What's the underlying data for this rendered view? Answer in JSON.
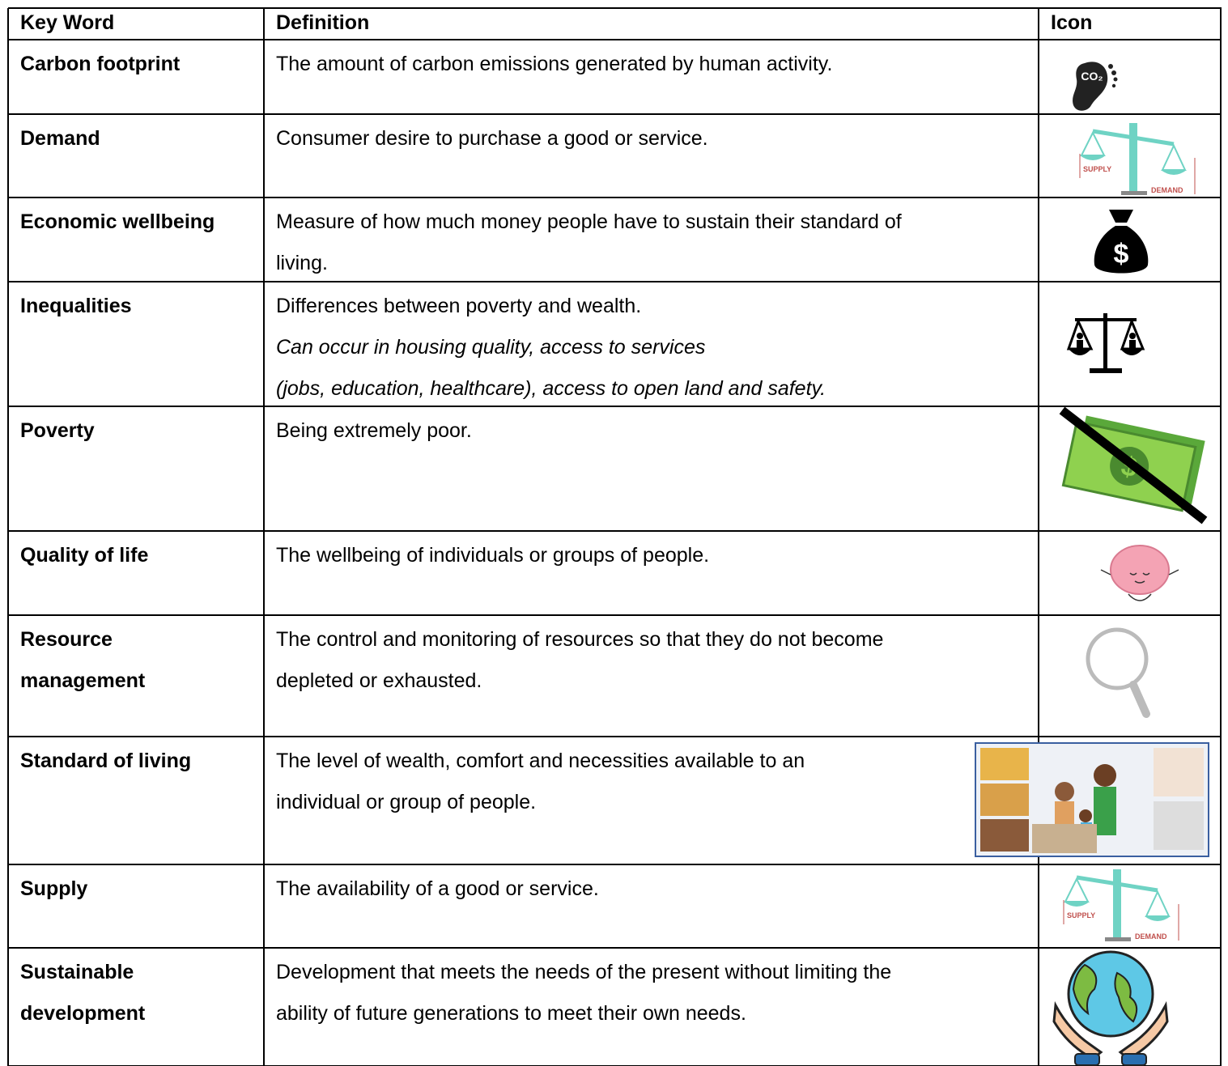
{
  "table": {
    "header": [
      "Key Word",
      "Definition",
      "Icon"
    ],
    "rows": [
      {
        "term": [
          "Carbon footprint"
        ],
        "definition": [
          "The amount of carbon emissions generated by human activity."
        ]
      },
      {
        "term": [
          "Demand"
        ],
        "definition": [
          "Consumer desire to purchase a good or service."
        ]
      },
      {
        "term": [
          "Economic wellbeing"
        ],
        "definition": [
          "Measure of how much money people have to sustain their standard of",
          "living."
        ]
      },
      {
        "term": [
          "Inequalities"
        ],
        "definition": [
          "Differences between poverty and wealth."
        ],
        "note": [
          "Can occur in housing quality, access to services",
          "(jobs, education, healthcare), access to open land and safety."
        ]
      },
      {
        "term": [
          "Poverty"
        ],
        "definition": [
          "Being extremely poor."
        ]
      },
      {
        "term": [
          "Quality of life"
        ],
        "definition": [
          "The wellbeing of individuals or groups of people."
        ]
      },
      {
        "term": [
          "Resource",
          "management"
        ],
        "definition": [
          "The control and monitoring of resources so that they do not become",
          "depleted or exhausted."
        ]
      },
      {
        "term": [
          "Standard of living"
        ],
        "definition": [
          "The level of wealth, comfort and necessities available to an",
          "individual or group of people."
        ]
      },
      {
        "term": [
          "Supply"
        ],
        "definition": [
          "The availability of a good or service."
        ]
      },
      {
        "term": [
          "Sustainable",
          "development"
        ],
        "definition": [
          "Development that meets the needs of the present without limiting the",
          "ability of future generations to meet their own needs."
        ]
      }
    ]
  },
  "icons": {
    "co2": "CO₂",
    "supply": "SUPPLY",
    "demand": "DEMAND",
    "dollar": "$"
  }
}
